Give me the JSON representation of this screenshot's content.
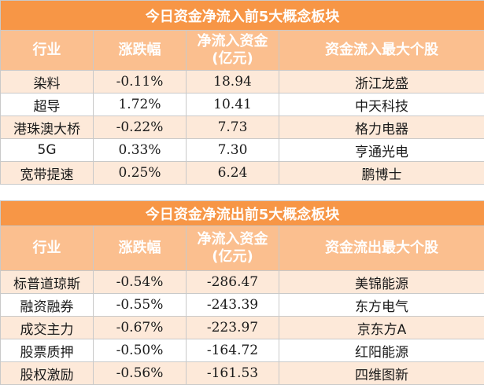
{
  "inflow": {
    "title": "今日资金净流入前5大概念板块",
    "headers": [
      "行业",
      "涨跌幅",
      "净流入资金\n(亿元)",
      "资金流入最大个股"
    ],
    "rows": [
      [
        "染料",
        "-0.11%",
        "18.94",
        "浙江龙盛"
      ],
      [
        "超导",
        "1.72%",
        "10.41",
        "中天科技"
      ],
      [
        "港珠澳大桥",
        "-0.22%",
        "7.73",
        "格力电器"
      ],
      [
        "5G",
        "0.33%",
        "7.30",
        "亨通光电"
      ],
      [
        "宽带提速",
        "0.25%",
        "6.24",
        "鹏博士"
      ]
    ]
  },
  "outflow": {
    "title": "今日资金净流出前5大概念板块",
    "headers": [
      "行业",
      "涨跌幅",
      "净流入资金\n(亿元)",
      "资金流出最大个股"
    ],
    "rows": [
      [
        "标普道琼斯",
        "-0.54%",
        "-286.47",
        "美锦能源"
      ],
      [
        "融资融券",
        "-0.55%",
        "-243.39",
        "东方电气"
      ],
      [
        "成交主力",
        "-0.67%",
        "-223.97",
        "京东方A"
      ],
      [
        "股票质押",
        "-0.50%",
        "-164.72",
        "红阳能源"
      ],
      [
        "股权激励",
        "-0.56%",
        "-161.53",
        "四维图新"
      ]
    ]
  },
  "colors": {
    "title_bg": "#f79646",
    "header_bg": "#fbbf8f",
    "row_alt_bg": "#fde9d9"
  }
}
